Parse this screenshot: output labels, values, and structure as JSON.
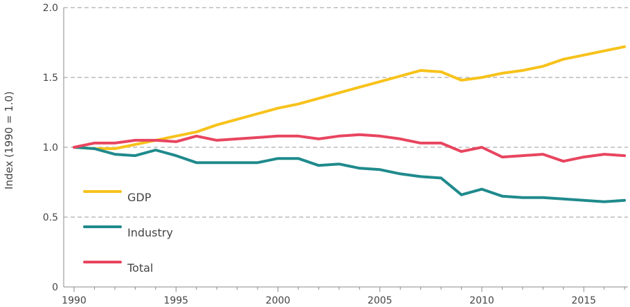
{
  "chart_data": {
    "type": "line",
    "title": "",
    "xlabel": "",
    "ylabel": "Index (1990 = 1.0)",
    "xlim": [
      1990,
      2017
    ],
    "ylim": [
      0,
      2.0
    ],
    "x_ticks": [
      1990,
      1995,
      2000,
      2005,
      2010,
      2015
    ],
    "x_tick_labels": [
      "1990",
      "1995",
      "2000",
      "2005",
      "2010",
      "2015"
    ],
    "y_ticks": [
      0,
      0.5,
      1.0,
      1.5,
      2.0
    ],
    "y_tick_labels": [
      "0",
      "0.5",
      "1.0",
      "1.5",
      "2.0"
    ],
    "grid": true,
    "legend_position": "left",
    "x": [
      1990,
      1991,
      1992,
      1993,
      1994,
      1995,
      1996,
      1997,
      1998,
      1999,
      2000,
      2001,
      2002,
      2003,
      2004,
      2005,
      2006,
      2007,
      2008,
      2009,
      2010,
      2011,
      2012,
      2013,
      2014,
      2015,
      2016,
      2017
    ],
    "series": [
      {
        "name": "GDP",
        "color": "#f7c21b",
        "values": [
          1.0,
          0.99,
          0.99,
          1.02,
          1.05,
          1.08,
          1.11,
          1.16,
          1.2,
          1.24,
          1.28,
          1.31,
          1.35,
          1.39,
          1.43,
          1.47,
          1.51,
          1.55,
          1.54,
          1.48,
          1.5,
          1.53,
          1.55,
          1.58,
          1.63,
          1.66,
          1.69,
          1.72
        ]
      },
      {
        "name": "Industry",
        "color": "#1f8a8c",
        "values": [
          1.0,
          0.99,
          0.95,
          0.94,
          0.98,
          0.94,
          0.89,
          0.89,
          0.89,
          0.89,
          0.92,
          0.92,
          0.87,
          0.88,
          0.85,
          0.84,
          0.81,
          0.79,
          0.78,
          0.66,
          0.7,
          0.65,
          0.64,
          0.64,
          0.63,
          0.62,
          0.61,
          0.62
        ]
      },
      {
        "name": "Total",
        "color": "#e8455f",
        "values": [
          1.0,
          1.03,
          1.03,
          1.05,
          1.05,
          1.04,
          1.08,
          1.05,
          1.06,
          1.07,
          1.08,
          1.08,
          1.06,
          1.08,
          1.09,
          1.08,
          1.06,
          1.03,
          1.03,
          0.97,
          1.0,
          0.93,
          0.94,
          0.95,
          0.9,
          0.93,
          0.95,
          0.94
        ]
      }
    ]
  }
}
